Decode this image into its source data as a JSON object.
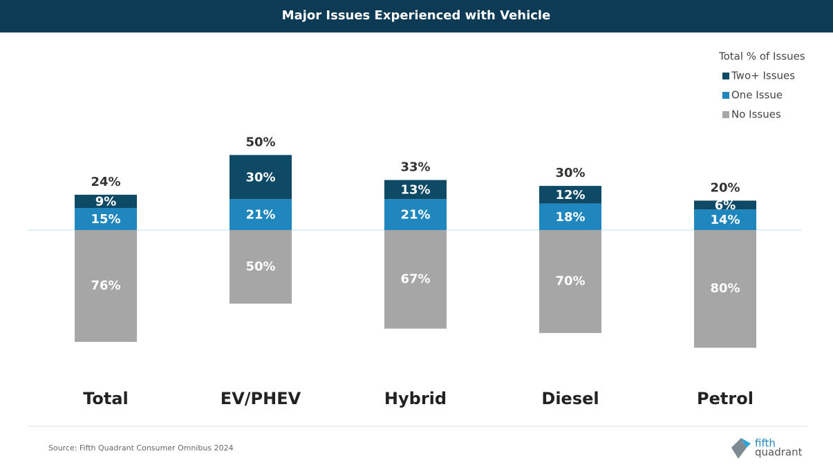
{
  "chart_data": {
    "type": "diverging-stacked-bar",
    "title": "Major Issues Experienced with Vehicle",
    "legend_title": "Total % of Issues",
    "legend": "top-right",
    "categories": [
      "Total",
      "EV/PHEV",
      "Hybrid",
      "Diesel",
      "Petrol"
    ],
    "series": [
      {
        "name": "Two+ Issues",
        "color": "#0e4a66",
        "values": [
          9,
          30,
          13,
          12,
          6
        ],
        "value_labels": [
          "9%",
          "30%",
          "13%",
          "12%",
          "6%"
        ]
      },
      {
        "name": "One Issue",
        "color": "#1f87bd",
        "values": [
          15,
          21,
          21,
          18,
          14
        ],
        "value_labels": [
          "15%",
          "21%",
          "21%",
          "18%",
          "14%"
        ]
      },
      {
        "name": "No Issues",
        "color": "#a6a6a6",
        "values": [
          76,
          50,
          67,
          70,
          80
        ],
        "value_labels": [
          "76%",
          "50%",
          "67%",
          "70%",
          "80%"
        ]
      }
    ],
    "totals": {
      "values": [
        24,
        50,
        33,
        30,
        20
      ],
      "value_labels": [
        "24%",
        "50%",
        "33%",
        "30%",
        "20%"
      ]
    }
  },
  "source": "Source: Fifth Quadrant Consumer Omnibus 2024",
  "logo": {
    "line1": "fifth",
    "line2": "quadrant"
  }
}
